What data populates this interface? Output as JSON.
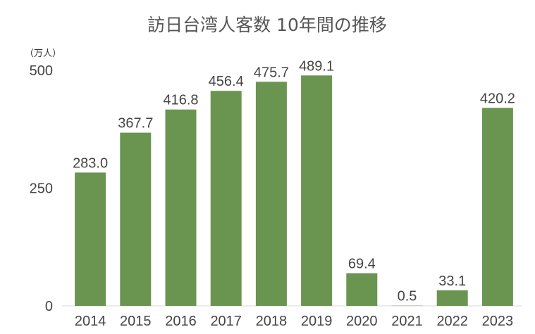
{
  "chart_data": {
    "type": "bar",
    "title": "訪日台湾人客数 10年間の推移",
    "unit_label": "（万人）",
    "categories": [
      "2014",
      "2015",
      "2016",
      "2017",
      "2018",
      "2019",
      "2020",
      "2021",
      "2022",
      "2023"
    ],
    "values": [
      283.0,
      367.7,
      416.8,
      456.4,
      475.7,
      489.1,
      69.4,
      0.5,
      33.1,
      420.2
    ],
    "data_labels": [
      "283.0",
      "367.7",
      "416.8",
      "456.4",
      "475.7",
      "489.1",
      "69.4",
      "0.5",
      "33.1",
      "420.2"
    ],
    "yticks": [
      "0",
      "250",
      "500"
    ],
    "ylim": [
      0,
      500
    ],
    "grid": false,
    "bar_color": "#6a9550"
  }
}
